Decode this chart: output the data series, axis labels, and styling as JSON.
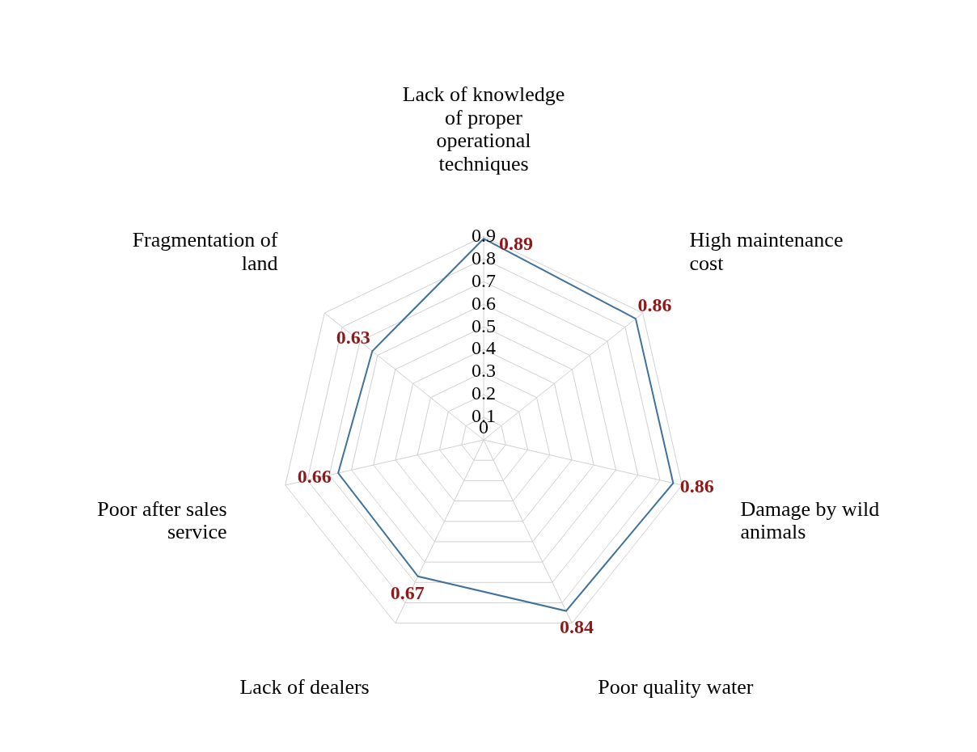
{
  "chart_data": {
    "type": "radar",
    "categories": [
      "Lack of knowledge of proper operational techniques",
      "High maintenance cost",
      "Damage by wild animals",
      "Poor quality water",
      "Lack of dealers",
      "Poor after sales service",
      "Fragmentation of land"
    ],
    "series": [
      {
        "color": "#41729c",
        "values": [
          0.89,
          0.86,
          0.86,
          0.84,
          0.67,
          0.66,
          0.63
        ]
      }
    ],
    "ylim": [
      0,
      0.9
    ],
    "yticks": [
      0,
      0.1,
      0.2,
      0.3,
      0.4,
      0.5,
      0.6,
      0.7,
      0.8,
      0.9
    ],
    "grid": true,
    "data_labels": true,
    "marker": "none",
    "legend": false
  }
}
